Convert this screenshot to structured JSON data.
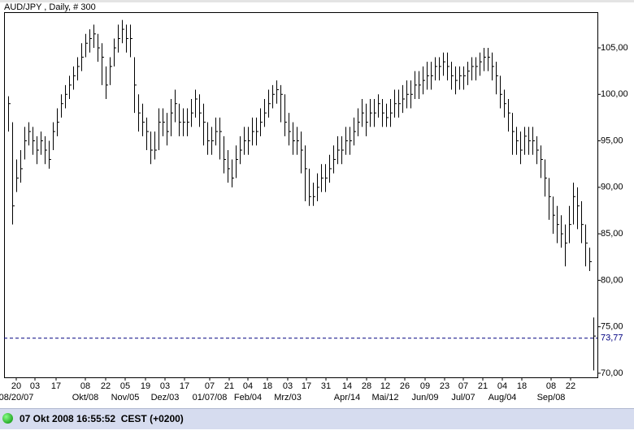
{
  "chart_data": {
    "type": "hlc",
    "title": "AUD/JPY , Daily, # 300",
    "color": "#000000",
    "high": [
      99.8,
      97,
      93,
      94,
      96.5,
      97,
      96.5,
      95.5,
      96,
      95.5,
      95,
      97,
      98.5,
      100,
      101,
      102,
      103,
      104,
      105.5,
      106.5,
      107,
      107.5,
      106.5,
      105.5,
      103,
      104,
      106,
      107.5,
      108,
      107.5,
      107.5,
      104,
      100,
      99,
      97.5,
      96,
      96,
      98.5,
      98.5,
      98,
      99.5,
      100.5,
      99,
      98.5,
      98.5,
      99.5,
      100.5,
      100,
      99,
      97,
      96.5,
      97.5,
      97.5,
      95.5,
      94,
      93,
      94.5,
      95.5,
      96.5,
      96.5,
      97.5,
      97.5,
      98.5,
      99.5,
      100.5,
      101,
      101.5,
      101,
      100,
      98,
      97,
      96.5,
      96,
      94.5,
      92,
      90.5,
      91.5,
      92.5,
      92.5,
      93.5,
      94.5,
      95.5,
      95.5,
      96.5,
      96.5,
      97.5,
      98.5,
      99.5,
      99,
      99.5,
      99.5,
      100,
      99.5,
      99,
      99.5,
      100.5,
      100.5,
      101,
      101.5,
      101.5,
      102.5,
      102.5,
      103,
      103.5,
      103.5,
      104,
      104,
      104.5,
      104.5,
      103.5,
      103,
      103,
      103,
      103.5,
      104,
      104,
      104.5,
      105,
      105,
      104.5,
      103.5,
      102,
      100.5,
      99.5,
      98,
      96.5,
      96,
      96.5,
      96.5,
      96.5,
      95.5,
      94.5,
      93,
      91,
      89,
      88,
      87,
      86,
      88,
      90.5,
      90,
      88.5,
      86,
      83.5,
      76
    ],
    "low": [
      96,
      86,
      89.5,
      90.5,
      93,
      94.5,
      93.5,
      92.5,
      93.5,
      92.5,
      92,
      94,
      95.5,
      97.5,
      98.5,
      99.5,
      100.5,
      101.5,
      102.5,
      104,
      104.5,
      105,
      103.5,
      101,
      99.5,
      101,
      103,
      104.5,
      105.5,
      104.5,
      104,
      98,
      96,
      95.5,
      94,
      92.5,
      93,
      94,
      95.5,
      94.5,
      95.5,
      97,
      95.5,
      95.5,
      95.5,
      96.5,
      97.5,
      96.5,
      94.5,
      93.5,
      93.5,
      94.5,
      93,
      91.5,
      90.5,
      90,
      91,
      92.5,
      93.5,
      93.5,
      94.5,
      94.5,
      95.5,
      96.5,
      97.5,
      98.5,
      99,
      97,
      95.5,
      94.5,
      93.5,
      93.5,
      91.5,
      88.5,
      88,
      88,
      88.5,
      89.5,
      89.5,
      90.5,
      91.5,
      92.5,
      92.5,
      93.5,
      93.5,
      94.5,
      95.5,
      96.5,
      95.5,
      96.5,
      96.5,
      97.5,
      96.5,
      96.5,
      96.5,
      97.5,
      97.5,
      98,
      98.5,
      98.5,
      99.5,
      99.5,
      100,
      100.5,
      100.5,
      101.5,
      101.5,
      102,
      101.5,
      100.5,
      100,
      100.5,
      100.5,
      101,
      101.5,
      101.5,
      102,
      102.5,
      102.5,
      101.5,
      100,
      98.5,
      97.5,
      96,
      93.5,
      93.5,
      92.5,
      93.5,
      93.5,
      93.5,
      92.5,
      91,
      89,
      86.5,
      85,
      84,
      83.5,
      81.5,
      84,
      86,
      85.5,
      84,
      81.5,
      81,
      70.3
    ],
    "close": [
      99,
      88,
      91,
      92,
      95,
      96,
      95,
      94,
      95,
      94,
      93,
      96,
      97,
      99,
      100,
      101,
      102,
      103,
      104,
      105.5,
      106,
      106.5,
      105,
      104,
      101,
      103,
      105,
      106,
      107,
      106,
      106,
      101,
      98,
      97,
      96,
      94,
      94,
      97,
      97,
      96,
      98,
      99,
      97,
      97,
      97,
      98,
      99.5,
      98,
      97,
      95,
      95,
      96,
      96,
      93,
      92,
      91,
      93,
      94,
      95,
      95,
      96,
      96,
      97,
      98,
      99,
      100,
      100.5,
      100,
      97,
      96,
      95,
      95,
      94,
      92,
      89,
      89,
      90,
      91,
      91,
      92,
      93,
      94,
      94,
      95,
      95,
      96,
      97,
      98,
      97,
      98,
      98,
      99,
      98,
      97.5,
      98,
      99,
      99,
      99.5,
      100,
      100,
      101,
      101,
      101.5,
      102,
      102,
      103,
      103,
      103.5,
      103,
      102,
      101.5,
      102,
      102,
      102.5,
      103,
      103,
      103.5,
      104,
      104,
      103,
      102,
      100,
      99,
      98,
      96,
      95,
      94,
      95.5,
      95,
      95,
      94,
      93,
      91,
      89,
      87,
      86,
      85,
      84,
      86,
      89,
      88,
      86,
      84,
      82,
      74
    ],
    "xlim": [
      -1,
      145
    ],
    "xticks": [
      {
        "value": 2,
        "label": "20"
      },
      {
        "value": 6.6,
        "label": "03"
      },
      {
        "value": 11.8,
        "label": "17"
      },
      {
        "value": 19,
        "label": "08"
      },
      {
        "value": 24,
        "label": "22"
      },
      {
        "value": 28.8,
        "label": "05"
      },
      {
        "value": 33.8,
        "label": "19"
      },
      {
        "value": 38.6,
        "label": "03"
      },
      {
        "value": 43.4,
        "label": "17"
      },
      {
        "value": 49.6,
        "label": "07"
      },
      {
        "value": 54.4,
        "label": "21"
      },
      {
        "value": 59,
        "label": "04"
      },
      {
        "value": 63.8,
        "label": "18"
      },
      {
        "value": 68.8,
        "label": "03"
      },
      {
        "value": 73.4,
        "label": "17"
      },
      {
        "value": 78.2,
        "label": "31"
      },
      {
        "value": 83.4,
        "label": "14"
      },
      {
        "value": 88.2,
        "label": "28"
      },
      {
        "value": 92.8,
        "label": "12"
      },
      {
        "value": 97.6,
        "label": "26"
      },
      {
        "value": 102.6,
        "label": "09"
      },
      {
        "value": 107.4,
        "label": "23"
      },
      {
        "value": 112,
        "label": "07"
      },
      {
        "value": 116.8,
        "label": "21"
      },
      {
        "value": 121.6,
        "label": "04"
      },
      {
        "value": 126.4,
        "label": "18"
      },
      {
        "value": 133.6,
        "label": "08"
      },
      {
        "value": 138.4,
        "label": "22"
      }
    ],
    "xticks2": [
      {
        "value": 2,
        "label": "08/20/07"
      },
      {
        "value": 19,
        "label": "Okt/08"
      },
      {
        "value": 28.8,
        "label": "Nov/05"
      },
      {
        "value": 38.6,
        "label": "Dez/03"
      },
      {
        "value": 49.6,
        "label": "01/07/08"
      },
      {
        "value": 59,
        "label": "Feb/04"
      },
      {
        "value": 68.8,
        "label": "Mrz/03"
      },
      {
        "value": 83.4,
        "label": "Apr/14"
      },
      {
        "value": 92.8,
        "label": "Mai/12"
      },
      {
        "value": 102.6,
        "label": "Jun/09"
      },
      {
        "value": 112,
        "label": "Jul/07"
      },
      {
        "value": 121.6,
        "label": "Aug/04"
      },
      {
        "value": 133.6,
        "label": "Sep/08"
      }
    ],
    "ylim": [
      69.56,
      108.84
    ],
    "yticks": [
      {
        "value": 70,
        "label": "70,00"
      },
      {
        "value": 75,
        "label": "75,00"
      },
      {
        "value": 80,
        "label": "80,00"
      },
      {
        "value": 85,
        "label": "85,00"
      },
      {
        "value": 90,
        "label": "90,00"
      },
      {
        "value": 95,
        "label": "95,00"
      },
      {
        "value": 100,
        "label": "100,00"
      },
      {
        "value": 105,
        "label": "105,00"
      }
    ],
    "current": {
      "value": 73.77,
      "label": "73,77",
      "color": "#000080"
    }
  },
  "status": {
    "text": "07 Okt 2008 16:55:52  CEST (+0200)"
  }
}
